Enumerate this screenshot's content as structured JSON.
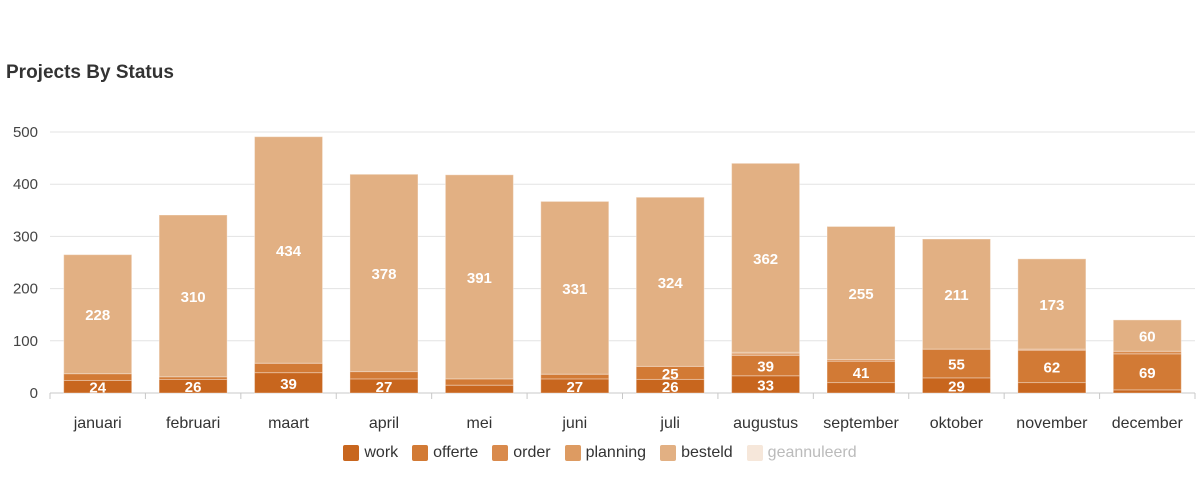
{
  "title": "Projects By Status",
  "chart_data": {
    "type": "bar",
    "stacked": true,
    "categories": [
      "januari",
      "februari",
      "maart",
      "april",
      "mei",
      "juni",
      "juli",
      "augustus",
      "september",
      "oktober",
      "november",
      "december"
    ],
    "ylim": [
      0,
      500
    ],
    "yticks": [
      0,
      100,
      200,
      300,
      400,
      500
    ],
    "grid": true,
    "legend_position": "bottom",
    "series": [
      {
        "name": "work",
        "color": "#c8661e",
        "values": [
          24,
          26,
          39,
          27,
          15,
          27,
          26,
          33,
          20,
          29,
          20,
          6
        ],
        "labels": [
          "24",
          "26",
          "39",
          "27",
          "",
          "27",
          "26",
          "33",
          "",
          "29",
          "",
          ""
        ]
      },
      {
        "name": "offerte",
        "color": "#d27a35",
        "values": [
          13,
          5,
          18,
          14,
          12,
          9,
          25,
          39,
          41,
          55,
          62,
          69
        ],
        "labels": [
          "",
          "",
          "",
          "",
          "",
          "",
          "25",
          "39",
          "41",
          "55",
          "62",
          "69"
        ]
      },
      {
        "name": "order",
        "color": "#d98a4c",
        "values": [
          0,
          0,
          0,
          0,
          0,
          0,
          0,
          3,
          3,
          0,
          2,
          5
        ],
        "labels": [
          "",
          "",
          "",
          "",
          "",
          "",
          "",
          "",
          "",
          "",
          "",
          ""
        ]
      },
      {
        "name": "planning",
        "color": "#dd9b62",
        "values": [
          0,
          0,
          0,
          0,
          0,
          0,
          0,
          3,
          0,
          0,
          0,
          0
        ],
        "labels": [
          "",
          "",
          "",
          "",
          "",
          "",
          "",
          "",
          "",
          "",
          "",
          ""
        ]
      },
      {
        "name": "besteld",
        "color": "#e2b083",
        "values": [
          228,
          310,
          434,
          378,
          391,
          331,
          324,
          362,
          255,
          211,
          173,
          60
        ],
        "labels": [
          "228",
          "310",
          "434",
          "378",
          "391",
          "331",
          "324",
          "362",
          "255",
          "211",
          "173",
          "60"
        ]
      },
      {
        "name": "geannuleerd",
        "color": "#f6e7da",
        "hidden": true,
        "values": [
          0,
          0,
          0,
          0,
          0,
          0,
          0,
          0,
          0,
          0,
          0,
          0
        ],
        "labels": [
          "",
          "",
          "",
          "",
          "",
          "",
          "",
          "",
          "",
          "",
          "",
          ""
        ]
      }
    ]
  }
}
